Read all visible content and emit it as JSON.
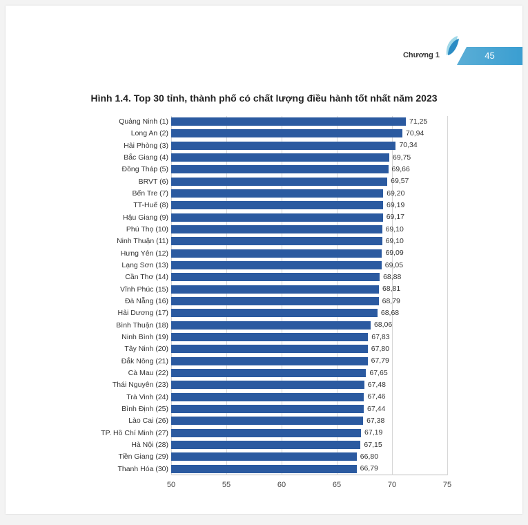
{
  "header": {
    "chapter_label": "Chương 1",
    "page_number": "45"
  },
  "chart": {
    "type": "bar-horizontal",
    "title": "Hình 1.4. Top 30 tỉnh, thành phố có chất lượng điều hành tốt nhất năm 2023",
    "bar_color": "#2b5aa0",
    "background_color": "#ffffff",
    "grid_color": "#d6d6d6",
    "value_fontsize": 10.5,
    "label_fontsize": 10.5,
    "title_fontsize": 14,
    "xlim": [
      50,
      75
    ],
    "xticks": [
      50,
      55,
      60,
      65,
      70,
      75
    ],
    "items": [
      {
        "rank": 1,
        "name": "Quảng Ninh",
        "value": 71.25,
        "value_label": "71,25"
      },
      {
        "rank": 2,
        "name": "Long An",
        "value": 70.94,
        "value_label": "70,94"
      },
      {
        "rank": 3,
        "name": "Hải Phòng",
        "value": 70.34,
        "value_label": "70,34"
      },
      {
        "rank": 4,
        "name": "Bắc Giang",
        "value": 69.75,
        "value_label": "69,75"
      },
      {
        "rank": 5,
        "name": "Đồng Tháp",
        "value": 69.66,
        "value_label": "69,66"
      },
      {
        "rank": 6,
        "name": "BRVT",
        "value": 69.57,
        "value_label": "69,57"
      },
      {
        "rank": 7,
        "name": "Bến Tre",
        "value": 69.2,
        "value_label": "69,20"
      },
      {
        "rank": 8,
        "name": "TT-Huế",
        "value": 69.19,
        "value_label": "69,19"
      },
      {
        "rank": 9,
        "name": "Hậu Giang",
        "value": 69.17,
        "value_label": "69,17"
      },
      {
        "rank": 10,
        "name": "Phú Thọ",
        "value": 69.1,
        "value_label": "69,10"
      },
      {
        "rank": 11,
        "name": "Ninh Thuận",
        "value": 69.1,
        "value_label": "69,10"
      },
      {
        "rank": 12,
        "name": "Hưng Yên",
        "value": 69.09,
        "value_label": "69,09"
      },
      {
        "rank": 13,
        "name": "Lạng Sơn",
        "value": 69.05,
        "value_label": "69,05"
      },
      {
        "rank": 14,
        "name": "Cần Thơ",
        "value": 68.88,
        "value_label": "68,88"
      },
      {
        "rank": 15,
        "name": "Vĩnh Phúc",
        "value": 68.81,
        "value_label": "68,81"
      },
      {
        "rank": 16,
        "name": "Đà Nẵng",
        "value": 68.79,
        "value_label": "68,79"
      },
      {
        "rank": 17,
        "name": "Hải Dương",
        "value": 68.68,
        "value_label": "68,68"
      },
      {
        "rank": 18,
        "name": "Bình Thuận",
        "value": 68.06,
        "value_label": "68,06"
      },
      {
        "rank": 19,
        "name": "Ninh Bình",
        "value": 67.83,
        "value_label": "67,83"
      },
      {
        "rank": 20,
        "name": "Tây Ninh",
        "value": 67.8,
        "value_label": "67,80"
      },
      {
        "rank": 21,
        "name": "Đắk Nông",
        "value": 67.79,
        "value_label": "67,79"
      },
      {
        "rank": 22,
        "name": "Cà Mau",
        "value": 67.65,
        "value_label": "67,65"
      },
      {
        "rank": 23,
        "name": "Thái Nguyên",
        "value": 67.48,
        "value_label": "67,48"
      },
      {
        "rank": 24,
        "name": "Trà Vinh",
        "value": 67.46,
        "value_label": "67,46"
      },
      {
        "rank": 25,
        "name": "Bình Định",
        "value": 67.44,
        "value_label": "67,44"
      },
      {
        "rank": 26,
        "name": "Lào Cai",
        "value": 67.38,
        "value_label": "67,38"
      },
      {
        "rank": 27,
        "name": "TP. Hồ Chí Minh",
        "value": 67.19,
        "value_label": "67,19"
      },
      {
        "rank": 28,
        "name": "Hà Nội",
        "value": 67.15,
        "value_label": "67,15"
      },
      {
        "rank": 29,
        "name": "Tiền Giang",
        "value": 66.8,
        "value_label": "66,80"
      },
      {
        "rank": 30,
        "name": "Thanh Hóa",
        "value": 66.79,
        "value_label": "66,79"
      }
    ]
  }
}
